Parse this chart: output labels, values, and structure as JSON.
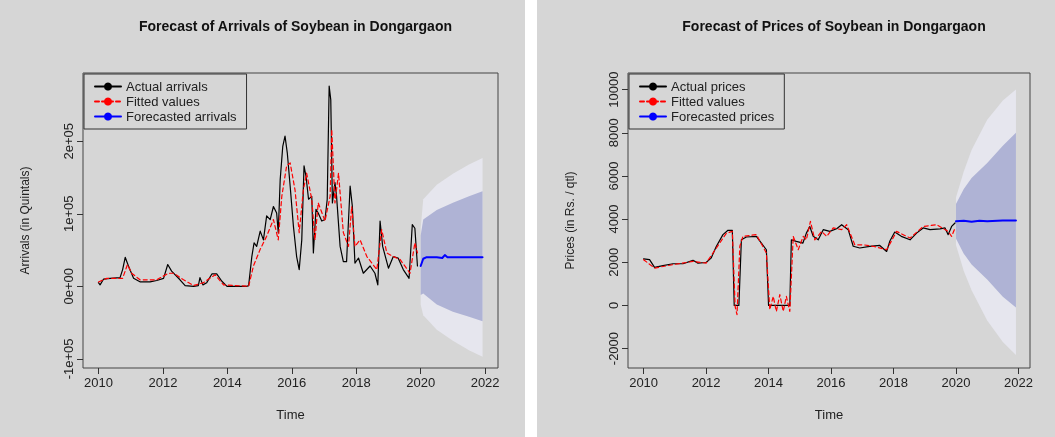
{
  "chart_data": [
    {
      "type": "line",
      "title": "Forecast of Arrivals of Soybean in Dongargaon",
      "xlabel": "Time",
      "ylabel": "Arrivals (in Quintals)",
      "xlim": [
        2009.52,
        2022.4
      ],
      "xticks": [
        2010,
        2012,
        2014,
        2016,
        2018,
        2020,
        2022
      ],
      "ylim": [
        -112600,
        294000
      ],
      "yticks": [
        {
          "value": -100000,
          "label": "-1e+05"
        },
        {
          "value": 0,
          "label": "0e+00"
        },
        {
          "value": 100000,
          "label": "1e+05"
        },
        {
          "value": 200000,
          "label": "2e+05"
        }
      ],
      "grid": false,
      "legend": "top left",
      "marker": "none",
      "series": [
        {
          "color": "#e6e6ee",
          "x": [
            2020.0,
            2020.08,
            2020.5,
            2021.0,
            2021.5,
            2021.92
          ],
          "values": [
            null,
            null,
            null,
            null,
            null,
            null
          ],
          "lower": [
            -25000,
            -40000,
            -60000,
            -75000,
            -88000,
            -97000
          ],
          "upper": [
            80000,
            120000,
            140000,
            155000,
            168000,
            177000
          ]
        },
        {
          "color": "#afb3d5",
          "x": [
            2020.0,
            2020.08,
            2020.5,
            2021.0,
            2021.5,
            2021.92
          ],
          "values": [
            null,
            null,
            null,
            null,
            null,
            null
          ],
          "lower": [
            -12000,
            -10000,
            -25000,
            -35000,
            -42000,
            -48000
          ],
          "upper": [
            70000,
            92000,
            105000,
            115000,
            124000,
            131000
          ]
        },
        {
          "name": "Actual arrivals",
          "color": "#000000",
          "line_style": "solid",
          "x": [
            2010.0,
            2010.05,
            2010.16,
            2010.36,
            2010.67,
            2010.75,
            2010.83,
            2010.93,
            2011.09,
            2011.3,
            2011.6,
            2011.81,
            2012.02,
            2012.15,
            2012.27,
            2012.53,
            2012.69,
            2012.95,
            2013.1,
            2013.15,
            2013.24,
            2013.36,
            2013.52,
            2013.67,
            2013.83,
            2013.99,
            2014.61,
            2014.66,
            2014.76,
            2014.83,
            2014.91,
            2015.02,
            2015.12,
            2015.22,
            2015.33,
            2015.43,
            2015.53,
            2015.58,
            2015.64,
            2015.72,
            2015.79,
            2015.86,
            2015.95,
            2016.05,
            2016.15,
            2016.23,
            2016.31,
            2016.38,
            2016.44,
            2016.52,
            2016.62,
            2016.67,
            2016.75,
            2016.82,
            2016.93,
            2017.03,
            2017.1,
            2017.16,
            2017.21,
            2017.26,
            2017.34,
            2017.39,
            2017.5,
            2017.6,
            2017.7,
            2017.81,
            2017.88,
            2017.96,
            2018.07,
            2018.22,
            2018.43,
            2018.58,
            2018.67,
            2018.74,
            2018.82,
            2019.0,
            2019.15,
            2019.3,
            2019.46,
            2019.64,
            2019.74,
            2019.82,
            2019.9
          ],
          "values": [
            5000,
            2000,
            10000,
            11000,
            12000,
            23000,
            40000,
            28000,
            11000,
            6000,
            6000,
            8000,
            11000,
            30000,
            21000,
            9000,
            1000,
            0,
            1000,
            12000,
            2000,
            5000,
            17000,
            17000,
            7000,
            0,
            0,
            1000,
            41000,
            60000,
            55000,
            76000,
            64000,
            97000,
            92000,
            110000,
            101000,
            74000,
            147000,
            193000,
            207000,
            184000,
            138000,
            83000,
            41000,
            23000,
            64000,
            166000,
            152000,
            120000,
            124000,
            46000,
            106000,
            101000,
            90000,
            92000,
            120000,
            276000,
            257000,
            115000,
            143000,
            124000,
            55000,
            34000,
            34000,
            138000,
            110000,
            32000,
            39000,
            18000,
            28000,
            18000,
            2000,
            90000,
            55000,
            25000,
            41000,
            39000,
            23000,
            11000,
            85000,
            80000,
            28000
          ]
        },
        {
          "name": "Fitted values",
          "color": "#ff0000",
          "line_style": "dashed",
          "x": [
            2010.0,
            2010.26,
            2010.75,
            2010.9,
            2011.03,
            2011.29,
            2011.81,
            2012.17,
            2012.33,
            2012.64,
            2012.95,
            2013.26,
            2013.62,
            2013.88,
            2014.66,
            2014.81,
            2015.02,
            2015.22,
            2015.43,
            2015.58,
            2015.69,
            2015.84,
            2015.95,
            2016.1,
            2016.23,
            2016.36,
            2016.46,
            2016.62,
            2016.72,
            2016.82,
            2017.03,
            2017.19,
            2017.24,
            2017.34,
            2017.45,
            2017.6,
            2017.76,
            2017.86,
            2017.96,
            2018.12,
            2018.33,
            2018.64,
            2018.79,
            2018.95,
            2019.15,
            2019.36,
            2019.67,
            2019.82,
            2019.9
          ],
          "values": [
            6000,
            11000,
            11000,
            30000,
            18000,
            9000,
            9000,
            18000,
            18000,
            9000,
            1000,
            5000,
            16000,
            2000,
            0,
            28000,
            51000,
            69000,
            92000,
            64000,
            124000,
            166000,
            170000,
            133000,
            74000,
            133000,
            156000,
            120000,
            64000,
            115000,
            90000,
            124000,
            216000,
            115000,
            156000,
            74000,
            55000,
            110000,
            55000,
            64000,
            41000,
            23000,
            78000,
            46000,
            41000,
            37000,
            18000,
            60000,
            46000
          ]
        },
        {
          "name": "Forecasted arrivals",
          "color": "#0000ff",
          "line_style": "solid",
          "x": [
            2020.0,
            2020.08,
            2020.17,
            2020.5,
            2020.67,
            2020.75,
            2020.83,
            2021.0,
            2021.92
          ],
          "values": [
            28000,
            38000,
            40000,
            40000,
            39000,
            43000,
            40000,
            40000,
            40000
          ]
        }
      ]
    },
    {
      "type": "line",
      "title": "Forecast of Prices of Soybean in Dongargaon",
      "xlabel": "Time",
      "ylabel": "Prices (in Rs. / qtl)",
      "xlim": [
        2009.5,
        2022.37
      ],
      "xticks": [
        2010,
        2012,
        2014,
        2016,
        2018,
        2020,
        2022
      ],
      "ylim": [
        -2900,
        10770
      ],
      "yticks": [
        -2000,
        0,
        2000,
        4000,
        6000,
        8000,
        10000
      ],
      "grid": false,
      "legend": "top left",
      "marker": "none",
      "series": [
        {
          "color": "#e6e6ee",
          "x": [
            2020.0,
            2020.25,
            2020.5,
            2021.0,
            2021.5,
            2021.92
          ],
          "values": [
            null,
            null,
            null,
            null,
            null,
            null
          ],
          "lower": [
            2800,
            1600,
            700,
            -700,
            -1700,
            -2300
          ],
          "upper": [
            5000,
            6200,
            7200,
            8600,
            9500,
            10000
          ]
        },
        {
          "color": "#afb3d5",
          "x": [
            2020.0,
            2020.25,
            2020.5,
            2021.0,
            2021.5,
            2021.92
          ],
          "values": [
            null,
            null,
            null,
            null,
            null,
            null
          ],
          "lower": [
            3100,
            2400,
            1900,
            1200,
            400,
            -100
          ],
          "upper": [
            4700,
            5400,
            5900,
            6600,
            7400,
            8000
          ]
        },
        {
          "name": "Actual prices",
          "color": "#000000",
          "line_style": "solid",
          "x": [
            2010.0,
            2010.19,
            2010.35,
            2010.62,
            2010.94,
            2011.26,
            2011.58,
            2011.74,
            2012.0,
            2012.16,
            2012.33,
            2012.54,
            2012.7,
            2012.84,
            2012.9,
            2013.05,
            2013.13,
            2013.29,
            2013.61,
            2013.77,
            2013.93,
            2014.0,
            2014.68,
            2014.73,
            2014.89,
            2015.1,
            2015.21,
            2015.32,
            2015.43,
            2015.59,
            2015.75,
            2015.96,
            2016.18,
            2016.34,
            2016.55,
            2016.71,
            2016.92,
            2017.24,
            2017.56,
            2017.78,
            2017.88,
            2018.04,
            2018.25,
            2018.53,
            2018.74,
            2018.95,
            2019.17,
            2019.49,
            2019.65,
            2019.75,
            2019.86,
            2019.97
          ],
          "values": [
            2160,
            2120,
            1760,
            1840,
            1930,
            1930,
            2090,
            1960,
            1990,
            2190,
            2740,
            3280,
            3480,
            3480,
            0,
            0,
            3040,
            3170,
            3200,
            2890,
            2580,
            0,
            0,
            3040,
            2970,
            2890,
            3350,
            3660,
            3200,
            3040,
            3510,
            3430,
            3550,
            3740,
            3510,
            2740,
            2660,
            2740,
            2780,
            2500,
            2970,
            3400,
            3200,
            3040,
            3350,
            3590,
            3510,
            3550,
            3590,
            3280,
            3660,
            3820
          ]
        },
        {
          "name": "Fitted values",
          "color": "#ff0000",
          "line_style": "dashed",
          "x": [
            2010.0,
            2010.35,
            2010.94,
            2011.58,
            2012.0,
            2012.33,
            2012.65,
            2012.84,
            2012.93,
            2012.99,
            2013.08,
            2013.18,
            2013.61,
            2013.93,
            2014.04,
            2014.15,
            2014.25,
            2014.36,
            2014.47,
            2014.57,
            2014.68,
            2014.79,
            2014.95,
            2015.11,
            2015.21,
            2015.34,
            2015.48,
            2015.7,
            2015.86,
            2016.07,
            2016.34,
            2016.5,
            2016.76,
            2017.03,
            2017.35,
            2017.78,
            2018.1,
            2018.53,
            2018.95,
            2019.38,
            2019.75,
            2019.86,
            2019.97
          ],
          "values": [
            2120,
            1730,
            1890,
            2040,
            1960,
            2660,
            3350,
            3430,
            -50,
            -430,
            2740,
            3200,
            3280,
            2430,
            -200,
            420,
            -280,
            500,
            -280,
            420,
            -280,
            3200,
            2580,
            3200,
            3040,
            3900,
            3040,
            3430,
            3200,
            3590,
            3510,
            3740,
            2810,
            2810,
            2740,
            2580,
            3430,
            3120,
            3660,
            3740,
            3430,
            3200,
            3590
          ]
        },
        {
          "name": "Forecasted prices",
          "color": "#0000ff",
          "line_style": "solid",
          "x": [
            2020.0,
            2020.25,
            2020.5,
            2020.75,
            2021.0,
            2021.5,
            2021.92
          ],
          "values": [
            3900,
            3920,
            3880,
            3920,
            3900,
            3930,
            3930
          ]
        }
      ]
    }
  ]
}
